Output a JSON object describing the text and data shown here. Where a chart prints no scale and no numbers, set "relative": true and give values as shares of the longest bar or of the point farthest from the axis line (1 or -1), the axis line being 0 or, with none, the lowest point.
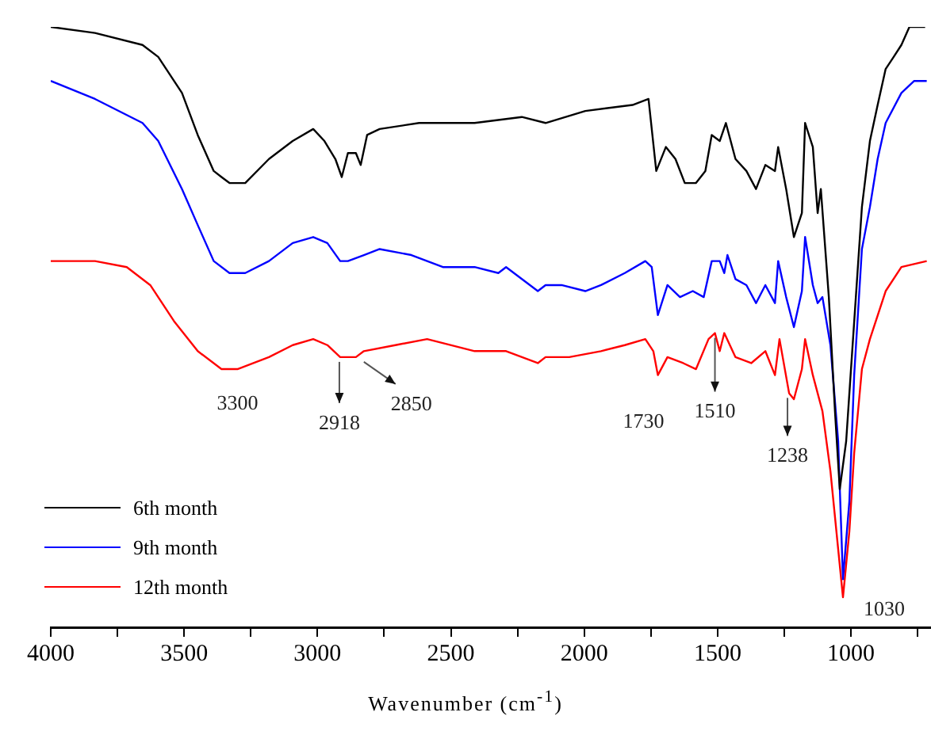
{
  "chart_data": {
    "type": "line",
    "xlabel": "Wavenumber (cm$^{-1}$)",
    "relative": true,
    "xlim": [
      4000,
      700
    ],
    "xticks": [
      4000,
      {
        "value": 3750,
        "label": null
      },
      3500,
      {
        "value": 3250,
        "label": null
      },
      3000,
      {
        "value": 2750,
        "label": null
      },
      2500,
      {
        "value": 2250,
        "label": null
      },
      2000,
      {
        "value": 1750,
        "label": null
      },
      1500,
      {
        "value": 1250,
        "label": null
      },
      1000,
      {
        "value": 750,
        "label": null
      }
    ],
    "grid": false,
    "legend": "bottom left",
    "marker": "none",
    "line_style": "solid",
    "series": [
      {
        "name": "6th month",
        "color": "#000000",
        "x": [
          4000,
          3834,
          3656,
          3597,
          3508,
          3449,
          3389,
          3360,
          3330,
          3271,
          3182,
          3093,
          3016,
          2974,
          2933,
          2909,
          2886,
          2856,
          2838,
          2814,
          2767,
          2619,
          2411,
          2234,
          2145,
          1996,
          1819,
          1759,
          1730,
          1694,
          1658,
          1623,
          1581,
          1546,
          1522,
          1492,
          1469,
          1433,
          1392,
          1356,
          1321,
          1285,
          1273,
          1243,
          1214,
          1184,
          1172,
          1143,
          1125,
          1113,
          1083,
          1060,
          1042,
          1018,
          1006,
          959,
          929,
          900,
          870,
          840,
          811,
          781,
          722
        ],
        "values": [
          1.0,
          0.99,
          0.97,
          0.95,
          0.89,
          0.82,
          0.76,
          0.75,
          0.74,
          0.74,
          0.78,
          0.81,
          0.83,
          0.81,
          0.78,
          0.75,
          0.79,
          0.79,
          0.77,
          0.82,
          0.83,
          0.84,
          0.84,
          0.85,
          0.84,
          0.86,
          0.87,
          0.88,
          0.76,
          0.8,
          0.78,
          0.74,
          0.74,
          0.76,
          0.82,
          0.81,
          0.84,
          0.78,
          0.76,
          0.73,
          0.77,
          0.76,
          0.8,
          0.73,
          0.65,
          0.69,
          0.84,
          0.8,
          0.69,
          0.73,
          0.55,
          0.36,
          0.23,
          0.31,
          0.39,
          0.7,
          0.81,
          0.87,
          0.93,
          0.95,
          0.97,
          1.0,
          1.0
        ]
      },
      {
        "name": "9th month",
        "color": "#0000ff",
        "x": [
          4000,
          3834,
          3656,
          3597,
          3508,
          3449,
          3389,
          3330,
          3271,
          3182,
          3093,
          3016,
          2963,
          2915,
          2886,
          2826,
          2767,
          2648,
          2530,
          2471,
          2411,
          2322,
          2293,
          2174,
          2145,
          2085,
          1996,
          1937,
          1848,
          1771,
          1747,
          1724,
          1688,
          1641,
          1593,
          1552,
          1522,
          1492,
          1475,
          1463,
          1433,
          1392,
          1356,
          1321,
          1285,
          1273,
          1243,
          1214,
          1184,
          1172,
          1143,
          1125,
          1107,
          1077,
          1048,
          1030,
          1006,
          988,
          959,
          929,
          900,
          870,
          811,
          763,
          716
        ],
        "values": [
          0.91,
          0.88,
          0.84,
          0.81,
          0.73,
          0.67,
          0.61,
          0.59,
          0.59,
          0.61,
          0.64,
          0.65,
          0.64,
          0.61,
          0.61,
          0.62,
          0.63,
          0.62,
          0.6,
          0.6,
          0.6,
          0.59,
          0.6,
          0.56,
          0.57,
          0.57,
          0.56,
          0.57,
          0.59,
          0.61,
          0.6,
          0.52,
          0.57,
          0.55,
          0.56,
          0.55,
          0.61,
          0.61,
          0.59,
          0.62,
          0.58,
          0.57,
          0.54,
          0.57,
          0.54,
          0.61,
          0.55,
          0.5,
          0.56,
          0.65,
          0.57,
          0.54,
          0.55,
          0.47,
          0.31,
          0.08,
          0.21,
          0.42,
          0.63,
          0.7,
          0.78,
          0.84,
          0.89,
          0.91,
          0.91
        ]
      },
      {
        "name": "12th month",
        "color": "#ff0000",
        "x": [
          4000,
          3834,
          3715,
          3627,
          3538,
          3449,
          3360,
          3300,
          3182,
          3093,
          3016,
          2963,
          2915,
          2856,
          2826,
          2708,
          2589,
          2411,
          2293,
          2174,
          2145,
          2056,
          1937,
          1848,
          1771,
          1741,
          1724,
          1688,
          1629,
          1581,
          1534,
          1510,
          1492,
          1475,
          1433,
          1374,
          1321,
          1285,
          1268,
          1232,
          1214,
          1184,
          1172,
          1143,
          1107,
          1077,
          1048,
          1030,
          1006,
          988,
          959,
          929,
          870,
          811,
          716
        ],
        "values": [
          0.61,
          0.61,
          0.6,
          0.57,
          0.51,
          0.46,
          0.43,
          0.43,
          0.45,
          0.47,
          0.48,
          0.47,
          0.45,
          0.45,
          0.46,
          0.47,
          0.48,
          0.46,
          0.46,
          0.44,
          0.45,
          0.45,
          0.46,
          0.47,
          0.48,
          0.46,
          0.42,
          0.45,
          0.44,
          0.43,
          0.48,
          0.49,
          0.46,
          0.49,
          0.45,
          0.44,
          0.46,
          0.42,
          0.48,
          0.39,
          0.38,
          0.43,
          0.48,
          0.42,
          0.36,
          0.26,
          0.13,
          0.05,
          0.16,
          0.29,
          0.43,
          0.48,
          0.56,
          0.6,
          0.61
        ]
      }
    ],
    "annotations": [
      {
        "text": "3300",
        "x": 3300,
        "y": 0.43
      },
      {
        "text": "2918",
        "x": 2918,
        "y": 0.45
      },
      {
        "text": "2850",
        "x": 2850,
        "y": 0.45
      },
      {
        "text": "1730",
        "x": 1730,
        "y": 0.42
      },
      {
        "text": "1510",
        "x": 1510,
        "y": 0.49
      },
      {
        "text": "1238",
        "x": 1238,
        "y": 0.39
      },
      {
        "text": "1030",
        "x": 1030,
        "y": 0.05
      }
    ]
  }
}
